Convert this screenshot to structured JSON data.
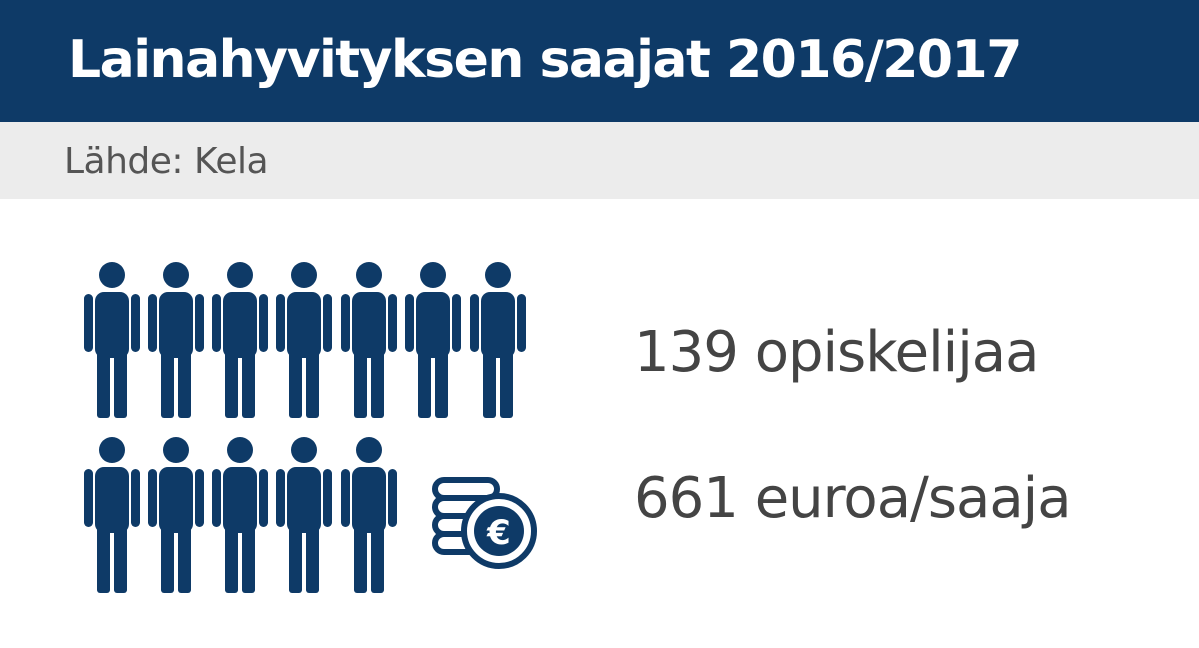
{
  "header": {
    "title": "Lainahyvityksen saajat 2016/2017"
  },
  "source": {
    "text": "Lähde: Kela"
  },
  "stats": {
    "recipients": "139 opiskelijaa",
    "amount": "661 euroa/saaja"
  },
  "icons": {
    "person": "person-icon",
    "coins": "euro-coins-icon"
  },
  "colors": {
    "header_bg": "#0e3a67",
    "source_bg": "#ececec",
    "icon": "#0e3a67",
    "stat_text": "#444444"
  }
}
